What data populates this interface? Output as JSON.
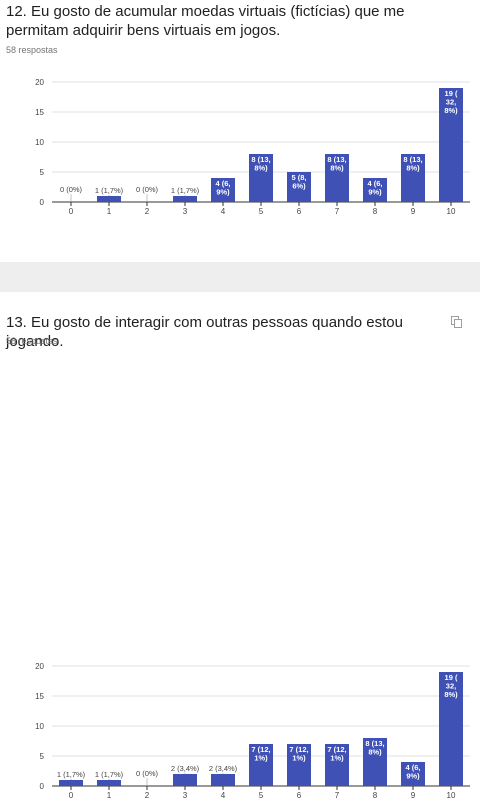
{
  "questions": [
    {
      "title": "12. Eu gosto de acumular moedas virtuais (fictícias) que me permitam adquirir bens virtuais em jogos.",
      "responses": "58 respostas"
    },
    {
      "title": "13. Eu gosto de interagir com outras pessoas quando estou jogando.",
      "responses": "58 respostas"
    }
  ],
  "icons": {
    "copy": "copy-icon"
  },
  "colors": {
    "bar": "#3f51b5",
    "grid": "#e0e0e0",
    "axis": "#333333",
    "label_in": "#ffffff",
    "label_out": "#444444"
  },
  "chart_data": [
    {
      "type": "bar",
      "categories": [
        "0",
        "1",
        "2",
        "3",
        "4",
        "5",
        "6",
        "7",
        "8",
        "9",
        "10"
      ],
      "values": [
        0,
        1,
        0,
        1,
        4,
        8,
        5,
        8,
        4,
        8,
        19
      ],
      "data_labels": [
        [
          "0 (0%)"
        ],
        [
          "1 (1,7%)"
        ],
        [
          "0 (0%)"
        ],
        [
          "1 (1,7%)"
        ],
        [
          "4 (6,",
          "9%)"
        ],
        [
          "8 (13,",
          "8%)"
        ],
        [
          "5 (8,",
          "6%)"
        ],
        [
          "8 (13,",
          "8%)"
        ],
        [
          "4 (6,",
          "9%)"
        ],
        [
          "8 (13,",
          "8%)"
        ],
        [
          "19 (",
          "32,",
          "8%)"
        ]
      ],
      "yticks": [
        0,
        5,
        10,
        15,
        20
      ],
      "ylim": [
        0,
        20
      ],
      "grid": true
    },
    {
      "type": "bar",
      "categories": [
        "0",
        "1",
        "2",
        "3",
        "4",
        "5",
        "6",
        "7",
        "8",
        "9",
        "10"
      ],
      "values": [
        1,
        1,
        0,
        2,
        2,
        7,
        7,
        7,
        8,
        4,
        19
      ],
      "data_labels": [
        [
          "1 (1,7%)"
        ],
        [
          "1 (1,7%)"
        ],
        [
          "0 (0%)"
        ],
        [
          "2 (3,4%)"
        ],
        [
          "2 (3,4%)"
        ],
        [
          "7 (12,",
          "1%)"
        ],
        [
          "7 (12,",
          "1%)"
        ],
        [
          "7 (12,",
          "1%)"
        ],
        [
          "8 (13,",
          "8%)"
        ],
        [
          "4 (6,",
          "9%)"
        ],
        [
          "19 (",
          "32,",
          "8%)"
        ]
      ],
      "yticks": [
        0,
        5,
        10,
        15,
        20
      ],
      "ylim": [
        0,
        20
      ],
      "grid": true
    }
  ]
}
